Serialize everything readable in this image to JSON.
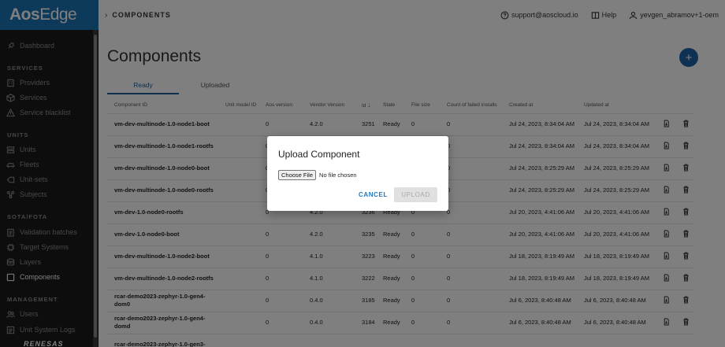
{
  "app": {
    "logo_bold": "Aos",
    "logo_light": "Edge"
  },
  "topbar": {
    "breadcrumb": "COMPONENTS",
    "support": "support@aoscloud.io",
    "help": "Help",
    "user": "yevgen_abramov+1-oem"
  },
  "sidebar": {
    "dashboard": "Dashboard",
    "sec_services": "SERVICES",
    "providers": "Providers",
    "services": "Services",
    "service_blacklist": "Service blacklist",
    "sec_units": "UNITS",
    "units": "Units",
    "fleets": "Fleets",
    "unit_sets": "Unit-sets",
    "subjects": "Subjects",
    "sec_sota": "SOTA/FOTA",
    "validation_batches": "Validation batches",
    "target_systems": "Target Systems",
    "layers": "Layers",
    "components": "Components",
    "sec_management": "MANAGEMENT",
    "users": "Users",
    "unit_system_logs": "Unit System Logs",
    "brand": "RENESAS"
  },
  "main": {
    "title": "Components",
    "add_button": "+",
    "tabs": {
      "ready": "Ready",
      "uploaded": "Uploaded"
    }
  },
  "table": {
    "headers": [
      "Component ID",
      "Unit model ID",
      "Aos version",
      "Vendor Version",
      "Id",
      "State",
      "File size",
      "Count of failed installs",
      "Created at",
      "Updated at"
    ],
    "sort_arrow": "↓",
    "rows": [
      [
        "vm-dev-multinode-1.0-node1-boot",
        "",
        "0",
        "4.2.0",
        "3251",
        "Ready",
        "0",
        "0",
        "Jul 24, 2023, 8:34:04 AM",
        "Jul 24, 2023, 8:34:04 AM"
      ],
      [
        "vm-dev-multinode-1.0-node1-rootfs",
        "",
        "0",
        "4.2.0",
        "3250",
        "Ready",
        "0",
        "0",
        "Jul 24, 2023, 8:34:04 AM",
        "Jul 24, 2023, 8:34:04 AM"
      ],
      [
        "vm-dev-multinode-1.0-node0-boot",
        "",
        "0",
        "4.2.0",
        "3249",
        "Ready",
        "0",
        "0",
        "Jul 24, 2023, 8:25:29 AM",
        "Jul 24, 2023, 8:25:29 AM"
      ],
      [
        "vm-dev-multinode-1.0-node0-rootfs",
        "",
        "0",
        "4.2.0",
        "3248",
        "Ready",
        "0",
        "0",
        "Jul 24, 2023, 8:25:29 AM",
        "Jul 24, 2023, 8:25:29 AM"
      ],
      [
        "vm-dev-1.0-node0-rootfs",
        "",
        "0",
        "4.2.0",
        "3236",
        "Ready",
        "0",
        "0",
        "Jul 20, 2023, 4:41:06 AM",
        "Jul 20, 2023, 4:41:06 AM"
      ],
      [
        "vm-dev-1.0-node0-boot",
        "",
        "0",
        "4.2.0",
        "3235",
        "Ready",
        "0",
        "0",
        "Jul 20, 2023, 4:41:06 AM",
        "Jul 20, 2023, 4:41:06 AM"
      ],
      [
        "vm-dev-multinode-1.0-node2-boot",
        "",
        "0",
        "4.1.0",
        "3223",
        "Ready",
        "0",
        "0",
        "Jul 18, 2023, 8:19:49 AM",
        "Jul 18, 2023, 8:19:49 AM"
      ],
      [
        "vm-dev-multinode-1.0-node2-rootfs",
        "",
        "0",
        "4.1.0",
        "3222",
        "Ready",
        "0",
        "0",
        "Jul 18, 2023, 8:19:49 AM",
        "Jul 18, 2023, 8:19:49 AM"
      ],
      [
        "rcar-demo2023-zephyr-1.0-gen4-dom0",
        "",
        "0",
        "0.4.0",
        "3185",
        "Ready",
        "0",
        "0",
        "Jul 6, 2023, 8:40:48 AM",
        "Jul 6, 2023, 8:40:48 AM"
      ],
      [
        "rcar-demo2023-zephyr-1.0-gen4-domd",
        "",
        "0",
        "0.4.0",
        "3184",
        "Ready",
        "0",
        "0",
        "Jul 6, 2023, 8:40:48 AM",
        "Jul 6, 2023, 8:40:48 AM"
      ],
      [
        "rcar-demo2023-zephyr-1.0-gen3-",
        "",
        "",
        "",
        "",
        "",
        "",
        "",
        "",
        ""
      ]
    ]
  },
  "dialog": {
    "title": "Upload Component",
    "choose_file": "Choose File",
    "no_file": "No file chosen",
    "cancel": "CANCEL",
    "upload": "UPLOAD"
  }
}
